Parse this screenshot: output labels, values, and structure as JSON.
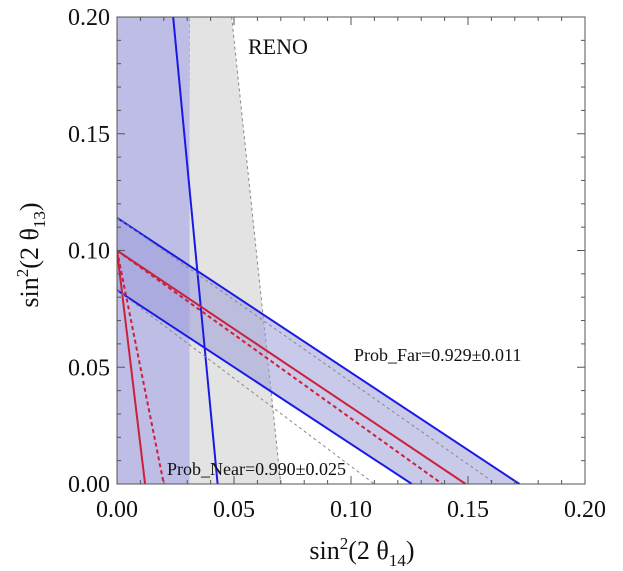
{
  "chart_data": {
    "type": "region-plot",
    "title": "RENO",
    "xlabel": {
      "main": "sin",
      "sup": "2",
      "paren": "(2 θ",
      "sub": "14",
      "close": ")"
    },
    "ylabel": {
      "main": "sin",
      "sup": "2",
      "paren": "(2 θ",
      "sub": "13",
      "close": ")"
    },
    "xlim": [
      0,
      0.2
    ],
    "ylim": [
      0,
      0.2
    ],
    "xticks": [
      0.0,
      0.05,
      0.1,
      0.15,
      0.2
    ],
    "yticks": [
      0.0,
      0.05,
      0.1,
      0.15,
      0.2
    ],
    "xtick_labels": [
      "0.00",
      "0.05",
      "0.10",
      "0.15",
      "0.20"
    ],
    "ytick_labels": [
      "0.00",
      "0.05",
      "0.10",
      "0.15",
      "0.20"
    ],
    "annotations": {
      "far": "Prob_Far=0.929±0.011",
      "near": "Prob_Near=0.990±0.025"
    },
    "regions": [
      {
        "name": "gray-far-band",
        "color": "#e3e3e3",
        "stroke": "#888888",
        "points": [
          [
            0.031,
            0.2
          ],
          [
            0.049,
            0.2
          ],
          [
            0.07,
            0.0
          ],
          [
            0.03,
            0.0
          ]
        ]
      },
      {
        "name": "near-region",
        "color": "#bdbde6",
        "points": [
          [
            0.0,
            0.2
          ],
          [
            0.031,
            0.2
          ],
          [
            0.031,
            0.0
          ],
          [
            0.0,
            0.0
          ]
        ]
      },
      {
        "name": "far-band",
        "color": "#9c9cd8",
        "opacity": 0.55,
        "points": [
          [
            0.0,
            0.114
          ],
          [
            0.172,
            0.0
          ],
          [
            0.126,
            0.0
          ],
          [
            0.0,
            0.083
          ]
        ]
      }
    ],
    "lines": [
      {
        "name": "far-upper",
        "color": "#1a1ae6",
        "dash": false,
        "points": [
          [
            0.0,
            0.114
          ],
          [
            0.172,
            0.0
          ]
        ]
      },
      {
        "name": "far-lower",
        "color": "#1a1ae6",
        "dash": false,
        "points": [
          [
            0.0,
            0.083
          ],
          [
            0.126,
            0.0
          ]
        ]
      },
      {
        "name": "near-line",
        "color": "#1a1ae6",
        "dash": false,
        "points": [
          [
            0.024,
            0.2
          ],
          [
            0.043,
            0.0
          ]
        ]
      },
      {
        "name": "far-central",
        "color": "#cc1f3c",
        "dash": false,
        "points": [
          [
            0.0,
            0.1
          ],
          [
            0.149,
            0.0
          ]
        ]
      },
      {
        "name": "far-central-dotted",
        "color": "#cc1f3c",
        "dash": true,
        "points": [
          [
            0.0,
            0.1
          ],
          [
            0.139,
            0.0
          ]
        ]
      },
      {
        "name": "near-central",
        "color": "#cc1f3c",
        "dash": false,
        "points": [
          [
            0.0,
            0.1
          ],
          [
            0.012,
            0.0
          ]
        ]
      },
      {
        "name": "near-central-dotted",
        "color": "#cc1f3c",
        "dash": true,
        "points": [
          [
            0.0,
            0.1
          ],
          [
            0.02,
            0.0
          ]
        ]
      },
      {
        "name": "gray-dashed-outer",
        "color": "#888888",
        "dash": true,
        "points": [
          [
            0.0,
            0.114
          ],
          [
            0.162,
            0.0
          ]
        ]
      },
      {
        "name": "gray-dashed-inner",
        "color": "#888888",
        "dash": true,
        "points": [
          [
            0.0,
            0.083
          ],
          [
            0.11,
            0.0
          ]
        ]
      }
    ]
  }
}
